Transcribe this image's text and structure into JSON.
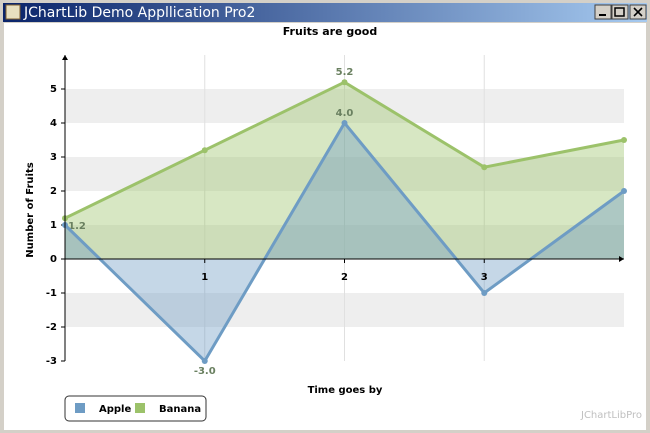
{
  "window": {
    "title": "JChartLib Demo Appllication Pro2"
  },
  "watermark": "JChartLibPro",
  "chart_data": {
    "type": "area",
    "title": "Fruits are good",
    "x_label": "Time goes by",
    "y_label": "Number of Fruits",
    "x": [
      0,
      1,
      2,
      3,
      4
    ],
    "series": [
      {
        "name": "Banana",
        "color": "#9cc26a",
        "values": [
          1.2,
          3.2,
          5.2,
          2.7,
          3.5
        ],
        "value_labels": [
          "1.2",
          null,
          "5.2",
          null,
          null
        ]
      },
      {
        "name": "Apple",
        "color": "#6e9cc4",
        "values": [
          1,
          -3,
          4,
          -1,
          2
        ],
        "value_labels": [
          null,
          "-3.0",
          "4.0",
          null,
          null
        ]
      }
    ],
    "xlim": [
      0,
      4
    ],
    "xticks": [
      1,
      2,
      3
    ],
    "ylim": [
      -3,
      6
    ],
    "yticks": [
      -3,
      -2,
      -1,
      0,
      1,
      2,
      3,
      4,
      5
    ],
    "grid": true,
    "legend": "bottom-left"
  }
}
